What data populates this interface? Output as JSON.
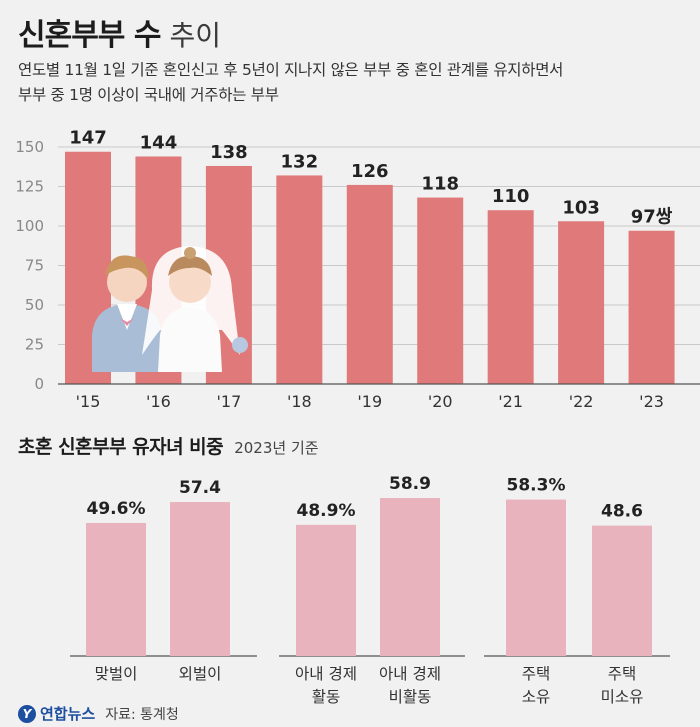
{
  "title": "신혼부부 수",
  "title_suffix": "추이",
  "description_line1": "연도별 11월 1일 기준 혼인신고 후 5년이 지나지 않은 부부 중 혼인 관계를 유지하면서",
  "description_line2": "부부 중 1명 이상이 국내에 거주하는 부부",
  "colors": {
    "bar_main": "#e07a7a",
    "bar_sub": "#e8b3bd",
    "grid": "#c9c9c9",
    "text": "#222222"
  },
  "chart_data": [
    {
      "type": "bar",
      "categories": [
        "'15",
        "'16",
        "'17",
        "'18",
        "'19",
        "'20",
        "'21",
        "'22",
        "'23"
      ],
      "values": [
        147,
        144,
        138,
        132,
        126,
        118,
        110,
        103,
        97
      ],
      "value_labels": [
        "147",
        "144",
        "138",
        "132",
        "126",
        "118",
        "110",
        "103",
        "97쌍"
      ],
      "ylim": [
        0,
        150
      ],
      "yticks": [
        0,
        25,
        50,
        75,
        100,
        125,
        150
      ],
      "grid": true
    },
    {
      "type": "bar",
      "title": "초혼 신혼부부 유자녀 비중",
      "note": "2023년 기준",
      "groups": [
        {
          "categories": [
            "맞벌이",
            "외벌이"
          ],
          "values": [
            49.6,
            57.4
          ],
          "value_labels": [
            "49.6%",
            "57.4"
          ]
        },
        {
          "categories": [
            "아내 경제 활동",
            "아내 경제 비활동"
          ],
          "category_lines": [
            [
              "아내 경제",
              "활동"
            ],
            [
              "아내 경제",
              "비활동"
            ]
          ],
          "values": [
            48.9,
            58.9
          ],
          "value_labels": [
            "48.9%",
            "58.9"
          ]
        },
        {
          "categories": [
            "주택 소유",
            "주택 미소유"
          ],
          "category_lines": [
            [
              "주택",
              "소유"
            ],
            [
              "주택",
              "미소유"
            ]
          ],
          "values": [
            58.3,
            48.6
          ],
          "value_labels": [
            "58.3%",
            "48.6"
          ]
        }
      ]
    }
  ],
  "footer": {
    "logo_text": "연합뉴스",
    "source": "자료: 통계청"
  }
}
